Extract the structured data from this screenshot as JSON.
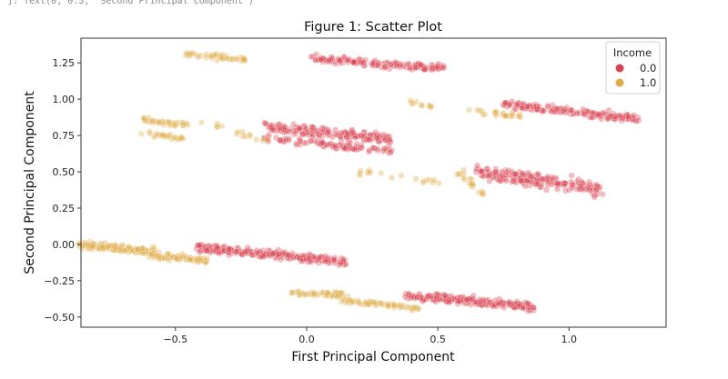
{
  "notebook": {
    "output_text": "]: Text(0, 0.5, 'Second Principal Component')"
  },
  "chart_data": {
    "type": "scatter",
    "title": "Figure 1: Scatter Plot",
    "xlabel": "First Principal Component",
    "ylabel": "Second Principal Component",
    "xlim": [
      -0.86,
      1.37
    ],
    "ylim": [
      -0.57,
      1.42
    ],
    "xticks": [
      -0.5,
      0.0,
      0.5,
      1.0
    ],
    "xtick_labels": [
      "−0.5",
      "0.0",
      "0.5",
      "1.0"
    ],
    "yticks": [
      -0.5,
      -0.25,
      0.0,
      0.25,
      0.5,
      0.75,
      1.0,
      1.25
    ],
    "ytick_labels": [
      "−0.50",
      "−0.25",
      "0.00",
      "0.25",
      "0.50",
      "0.75",
      "1.00",
      "1.25"
    ],
    "grid": false,
    "legend": {
      "title": "Income",
      "position": "top-right"
    },
    "series": [
      {
        "name": "0.0",
        "color": "#d9434f",
        "clusters": [
          {
            "x": [
              0.03,
              0.52
            ],
            "y": [
              1.28,
              1.21
            ],
            "spread": 0.025,
            "n": 150
          },
          {
            "x": [
              -0.16,
              0.33
            ],
            "y": [
              0.81,
              0.72
            ],
            "spread": 0.035,
            "n": 180
          },
          {
            "x": [
              -0.16,
              0.33
            ],
            "y": [
              0.73,
              0.64
            ],
            "spread": 0.025,
            "n": 90
          },
          {
            "x": [
              0.75,
              1.26
            ],
            "y": [
              0.96,
              0.87
            ],
            "spread": 0.028,
            "n": 170
          },
          {
            "x": [
              0.65,
              1.12
            ],
            "y": [
              0.5,
              0.38
            ],
            "spread": 0.045,
            "n": 200
          },
          {
            "x": [
              -0.42,
              0.15
            ],
            "y": [
              -0.02,
              -0.12
            ],
            "spread": 0.028,
            "n": 260
          },
          {
            "x": [
              0.38,
              0.87
            ],
            "y": [
              -0.35,
              -0.43
            ],
            "spread": 0.03,
            "n": 220
          }
        ]
      },
      {
        "name": "1.0",
        "color": "#e0ac48",
        "clusters": [
          {
            "x": [
              -0.46,
              -0.22
            ],
            "y": [
              1.31,
              1.27
            ],
            "spread": 0.02,
            "n": 45
          },
          {
            "x": [
              -0.62,
              -0.45
            ],
            "y": [
              0.86,
              0.82
            ],
            "spread": 0.02,
            "n": 35
          },
          {
            "x": [
              -0.62,
              -0.48
            ],
            "y": [
              0.77,
              0.73
            ],
            "spread": 0.015,
            "n": 25
          },
          {
            "x": [
              -0.4,
              -0.15
            ],
            "y": [
              0.84,
              0.72
            ],
            "spread": 0.03,
            "n": 15
          },
          {
            "x": [
              0.38,
              0.48
            ],
            "y": [
              0.98,
              0.95
            ],
            "spread": 0.015,
            "n": 10
          },
          {
            "x": [
              0.62,
              0.82
            ],
            "y": [
              0.92,
              0.88
            ],
            "spread": 0.02,
            "n": 25
          },
          {
            "x": [
              0.2,
              0.55
            ],
            "y": [
              0.52,
              0.4
            ],
            "spread": 0.04,
            "n": 18
          },
          {
            "x": [
              0.58,
              0.68
            ],
            "y": [
              0.48,
              0.35
            ],
            "spread": 0.03,
            "n": 20
          },
          {
            "x": [
              -0.86,
              -0.58
            ],
            "y": [
              0.0,
              -0.05
            ],
            "spread": 0.025,
            "n": 160
          },
          {
            "x": [
              -0.6,
              -0.38
            ],
            "y": [
              -0.07,
              -0.11
            ],
            "spread": 0.022,
            "n": 70
          },
          {
            "x": [
              -0.05,
              0.15
            ],
            "y": [
              -0.33,
              -0.35
            ],
            "spread": 0.018,
            "n": 50
          },
          {
            "x": [
              0.12,
              0.43
            ],
            "y": [
              -0.38,
              -0.44
            ],
            "spread": 0.02,
            "n": 60
          }
        ]
      }
    ]
  }
}
